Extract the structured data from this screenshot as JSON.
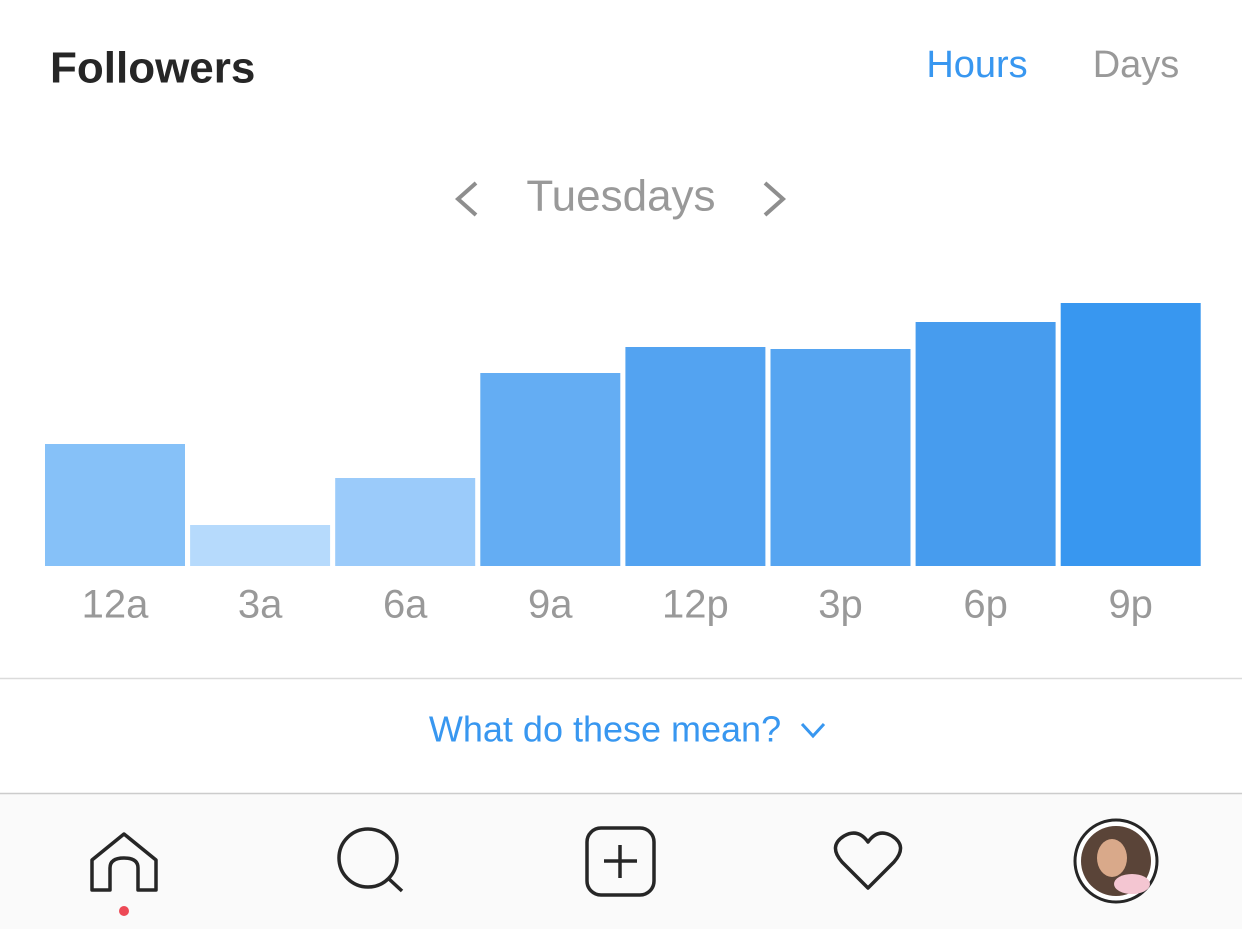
{
  "header": {
    "title": "Followers",
    "tabs": [
      "Hours",
      "Days"
    ]
  },
  "day_selector": {
    "label": "Tuesdays"
  },
  "chart_data": {
    "type": "bar",
    "categories": [
      "12a",
      "3a",
      "6a",
      "9a",
      "12p",
      "3p",
      "6p",
      "9p"
    ],
    "values": [
      122,
      41,
      88,
      193,
      219,
      217,
      244,
      263
    ],
    "colors": [
      "#86c1f8",
      "#b6dafc",
      "#9bcbfa",
      "#64adf3",
      "#53a3f1",
      "#56a5f1",
      "#479cee",
      "#3897f0"
    ]
  },
  "help_link": {
    "label": "What do these mean?"
  }
}
